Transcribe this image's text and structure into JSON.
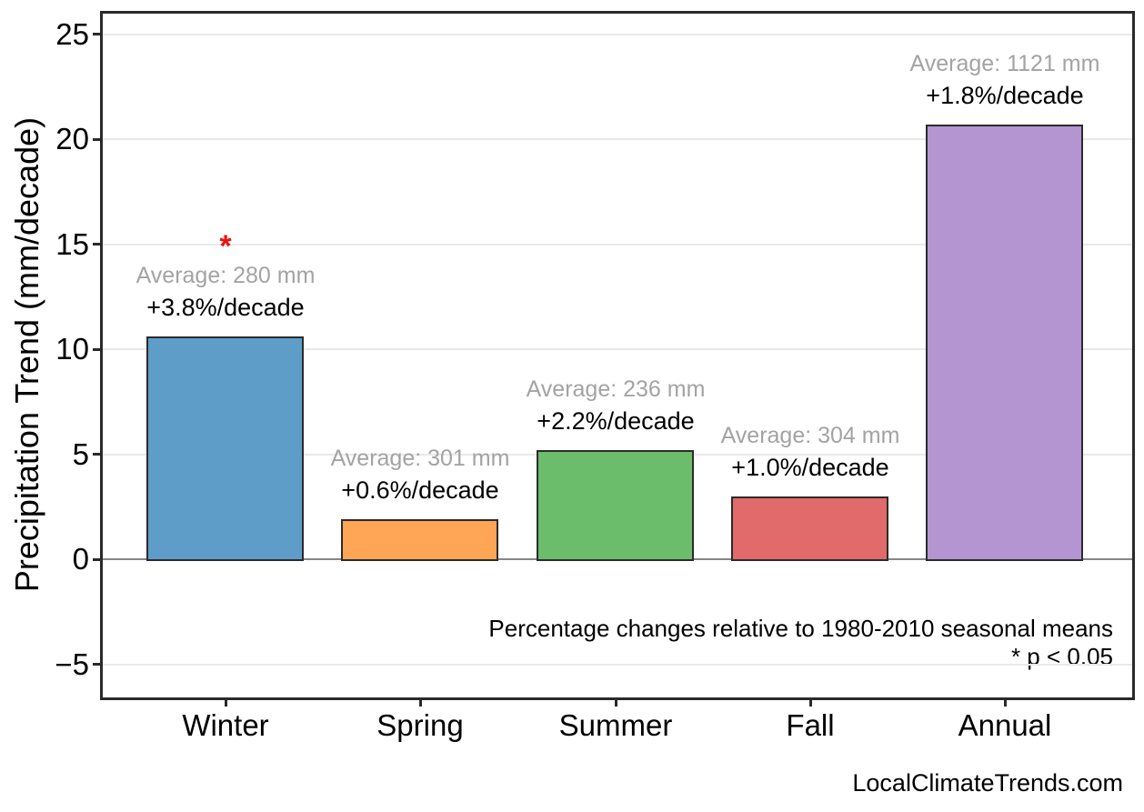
{
  "watermark": "LocalClimateTrends.com",
  "chart_data": {
    "type": "bar",
    "title": "",
    "xlabel": "",
    "ylabel": "Precipitation Trend (mm/decade)",
    "categories": [
      "Winter",
      "Spring",
      "Summer",
      "Fall",
      "Annual"
    ],
    "values": [
      10.6,
      1.9,
      5.2,
      3.0,
      20.7
    ],
    "units": "mm/decade",
    "bars": [
      {
        "category": "Winter",
        "value": 10.6,
        "color": "#5f9dc9",
        "average_label": "Average: 280 mm",
        "trend_label": "+3.8%/decade",
        "significant": true
      },
      {
        "category": "Spring",
        "value": 1.9,
        "color": "#ffa556",
        "average_label": "Average: 301 mm",
        "trend_label": "+0.6%/decade",
        "significant": false
      },
      {
        "category": "Summer",
        "value": 5.2,
        "color": "#6bbc6b",
        "average_label": "Average: 236 mm",
        "trend_label": "+2.2%/decade",
        "significant": false
      },
      {
        "category": "Fall",
        "value": 3.0,
        "color": "#e16a6a",
        "average_label": "Average: 304 mm",
        "trend_label": "+1.0%/decade",
        "significant": false
      },
      {
        "category": "Annual",
        "value": 20.7,
        "color": "#b495d2",
        "average_label": "Average: 1121 mm",
        "trend_label": "+1.8%/decade",
        "significant": false
      }
    ],
    "bar_edge_color": "#2b2b2b",
    "significance_marker": "*",
    "significance_marker_color": "#ee1111",
    "average_label_color": "#a3a3a3",
    "yticks": [
      -5,
      0,
      5,
      10,
      15,
      20,
      25
    ],
    "ylim": [
      -6.6,
      26.1
    ],
    "grid": "horizontal-light",
    "zero_line": true,
    "legend": "none",
    "annotation_note": "Percentage changes relative to 1980-2010 seasonal means",
    "significance_note": "* p < 0.05"
  }
}
